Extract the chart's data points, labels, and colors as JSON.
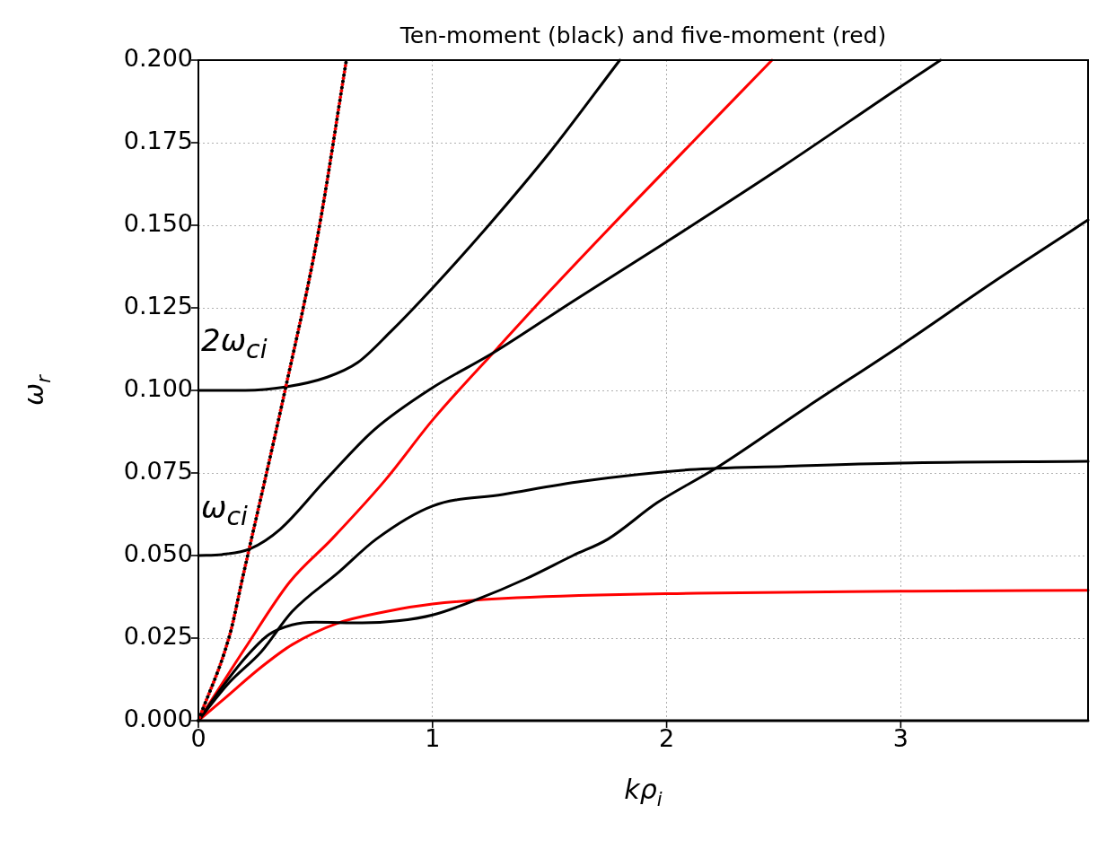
{
  "chart_data": {
    "type": "line",
    "title": "Ten-moment (black) and five-moment (red)",
    "xlabel": "kρ$_{i}$",
    "ylabel": "ω$_{r}$",
    "xlim": [
      0,
      3.8
    ],
    "xticks": [
      0,
      1,
      2,
      3
    ],
    "ylim": [
      0,
      0.2
    ],
    "yticks": [
      {
        "value": 0,
        "label": "0.000"
      },
      {
        "value": 0.025,
        "label": "0.025"
      },
      {
        "value": 0.05,
        "label": "0.050"
      },
      {
        "value": 0.075,
        "label": "0.075"
      },
      {
        "value": 0.1,
        "label": "0.100"
      },
      {
        "value": 0.125,
        "label": "0.125"
      },
      {
        "value": 0.15,
        "label": "0.150"
      },
      {
        "value": 0.175,
        "label": "0.175"
      },
      {
        "value": 0.2,
        "label": "0.200"
      }
    ],
    "grid": true,
    "legend": false,
    "marker": "none",
    "annotations": [
      "2ω$_{ci}$",
      "ω$_{ci}$"
    ],
    "series": [
      {
        "color": "#000000",
        "line_style": "solid",
        "x": [
          0,
          3.8
        ],
        "values": [
          0,
          0
        ]
      },
      {
        "color": "#000000",
        "line_style": "dotted",
        "x": [
          0,
          0.134,
          0.188,
          0.37,
          0.51,
          0.632
        ],
        "values": [
          0,
          0.026,
          0.043,
          0.1,
          0.147,
          0.2
        ]
      },
      {
        "color": "#ff0000",
        "line_style": "dotted",
        "x": [
          0,
          0.134,
          0.188,
          0.37,
          0.51,
          0.632
        ],
        "values": [
          0,
          0.026,
          0.043,
          0.1,
          0.147,
          0.2
        ]
      },
      {
        "color": "#000000",
        "line_style": "solid",
        "x": [
          0,
          0.2,
          0.37,
          0.55,
          0.68,
          0.82,
          1,
          1.24,
          1.5,
          1.8
        ],
        "values": [
          0.1,
          0.1,
          0.101,
          0.104,
          0.1084,
          0.1177,
          0.131,
          0.15,
          0.172,
          0.2
        ]
      },
      {
        "color": "#000000",
        "line_style": "solid",
        "x": [
          0,
          0.1,
          0.22,
          0.35,
          0.54,
          0.75,
          1,
          1.26,
          1.6,
          2,
          2.5,
          3,
          3.17
        ],
        "values": [
          0.05,
          0.0503,
          0.052,
          0.058,
          0.0726,
          0.088,
          0.1008,
          0.1114,
          0.127,
          0.145,
          0.168,
          0.192,
          0.2
        ]
      },
      {
        "color": "#000000",
        "line_style": "solid",
        "x": [
          0,
          0.13,
          0.27,
          0.4,
          0.6,
          0.76,
          1,
          1.3,
          1.64,
          2.1,
          2.5,
          3,
          3.8
        ],
        "values": [
          0,
          0.0114,
          0.021,
          0.033,
          0.045,
          0.055,
          0.065,
          0.0685,
          0.0725,
          0.076,
          0.077,
          0.078,
          0.0785
        ]
      },
      {
        "color": "#000000",
        "line_style": "solid",
        "x": [
          0,
          0.1,
          0.2,
          0.3,
          0.4,
          0.5,
          0.7,
          0.85,
          1,
          1.19,
          1.4,
          1.6,
          1.75,
          1.96,
          2.21,
          2.6,
          3,
          3.4,
          3.8
        ],
        "values": [
          0,
          0.01,
          0.019,
          0.026,
          0.029,
          0.0298,
          0.0296,
          0.0302,
          0.032,
          0.0367,
          0.043,
          0.05,
          0.055,
          0.066,
          0.0764,
          0.095,
          0.1136,
          0.133,
          0.1516
        ]
      },
      {
        "color": "#ff0000",
        "line_style": "solid",
        "x": [
          0,
          0.2,
          0.39,
          0.57,
          0.8,
          1,
          1.28,
          1.5,
          1.835,
          2.45
        ],
        "values": [
          0,
          0.022,
          0.042,
          0.055,
          0.073,
          0.091,
          0.113,
          0.13,
          0.155,
          0.2
        ]
      },
      {
        "color": "#ff0000",
        "line_style": "solid",
        "x": [
          0,
          0.1,
          0.27,
          0.4,
          0.59,
          0.8,
          1,
          1.36,
          2.13,
          3,
          3.8
        ],
        "values": [
          0,
          0.006,
          0.0163,
          0.023,
          0.0294,
          0.033,
          0.0353,
          0.0372,
          0.0386,
          0.0392,
          0.0395
        ]
      }
    ]
  }
}
